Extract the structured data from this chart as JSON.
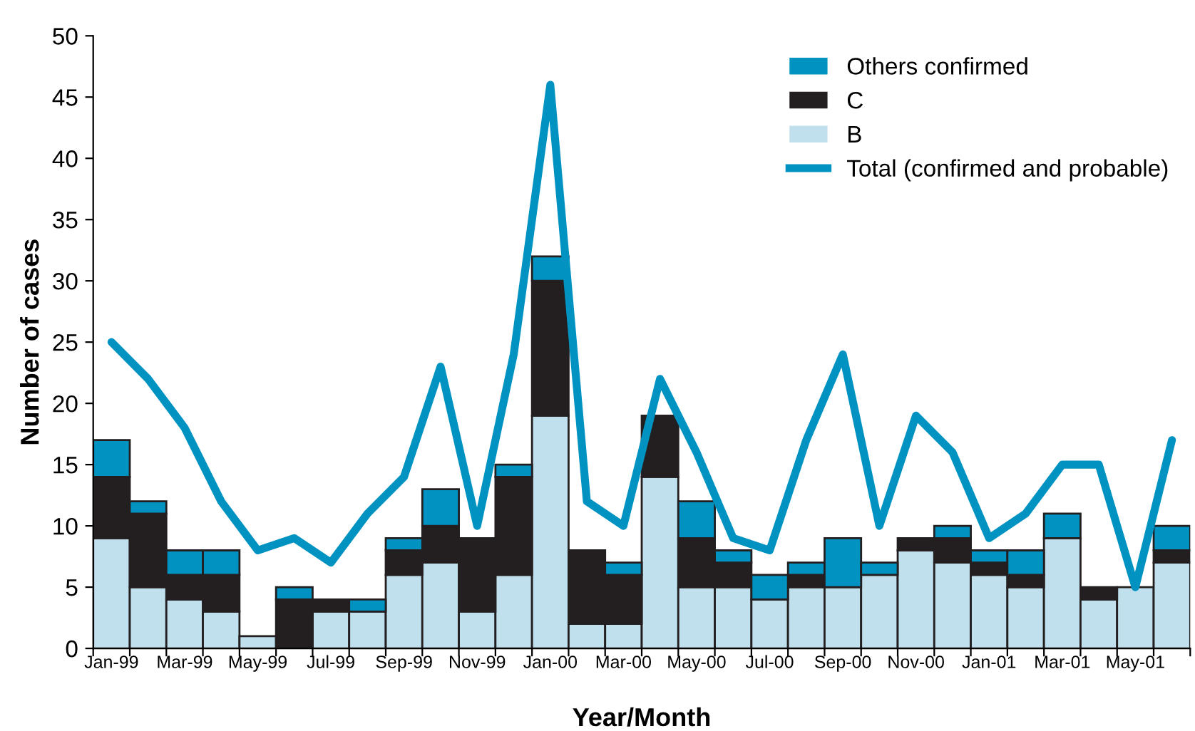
{
  "chart_data": {
    "type": "bar",
    "stacked": true,
    "xlabel": "Year/Month",
    "ylabel": "Number of cases",
    "categories": [
      "Jan-99",
      null,
      "Mar-99",
      null,
      "May-99",
      null,
      "Jul-99",
      null,
      "Sep-99",
      null,
      "Nov-99",
      null,
      "Jan-00",
      null,
      "Mar-00",
      null,
      "May-00",
      null,
      "Jul-00",
      null,
      "Sep-00",
      null,
      "Nov-00",
      null,
      "Jan-01",
      null,
      "Mar-01",
      null,
      "May-01",
      null
    ],
    "series": [
      {
        "name": "B",
        "color": "#bfe0ec",
        "values": [
          9,
          5,
          4,
          3,
          1,
          0,
          3,
          3,
          6,
          7,
          3,
          6,
          19,
          2,
          2,
          14,
          5,
          5,
          4,
          5,
          5,
          6,
          8,
          7,
          6,
          5,
          9,
          4,
          5,
          7
        ]
      },
      {
        "name": "C",
        "color": "#231f20",
        "values": [
          5,
          6,
          2,
          3,
          0,
          4,
          1,
          0,
          2,
          3,
          6,
          8,
          11,
          6,
          4,
          5,
          4,
          2,
          0,
          1,
          0,
          0,
          1,
          2,
          1,
          1,
          0,
          1,
          0,
          1
        ]
      },
      {
        "name": "Others confirmed",
        "color": "#0093c2",
        "values": [
          3,
          1,
          2,
          2,
          0,
          1,
          0,
          1,
          1,
          3,
          0,
          1,
          2,
          0,
          1,
          0,
          3,
          1,
          2,
          1,
          4,
          1,
          0,
          1,
          1,
          2,
          2,
          0,
          0,
          2
        ]
      },
      {
        "name": "Total (confirmed and probable)",
        "type": "line",
        "color": "#0093c2",
        "values": [
          25,
          22,
          18,
          12,
          8,
          9,
          7,
          11,
          14,
          23,
          10,
          24,
          46,
          12,
          10,
          22,
          16,
          9,
          8,
          17,
          24,
          10,
          19,
          16,
          9,
          11,
          15,
          15,
          5,
          17
        ]
      }
    ],
    "ylim": [
      0,
      50
    ],
    "yticks": [
      0,
      5,
      10,
      15,
      20,
      25,
      30,
      35,
      40,
      45,
      50
    ],
    "grid": false,
    "legend": "top right"
  }
}
